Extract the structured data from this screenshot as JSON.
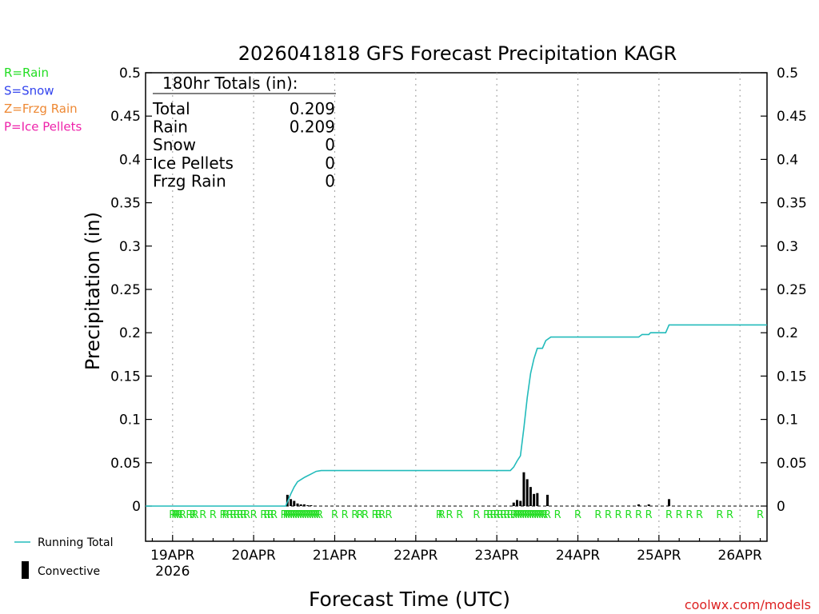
{
  "chart_data": {
    "type": "bar",
    "title": "2026041818 GFS Forecast Precipitation KAGR",
    "xlabel": "Forecast Time (UTC)",
    "ylabel": "Precipitation (in)",
    "ylim": [
      0,
      0.5
    ],
    "xlim_hours": [
      -2,
      182
    ],
    "y_ticks": [
      "0",
      "0.05",
      "0.1",
      "0.15",
      "0.2",
      "0.25",
      "0.3",
      "0.35",
      "0.4",
      "0.45",
      "0.5"
    ],
    "y_tick_values": [
      0,
      0.05,
      0.1,
      0.15,
      0.2,
      0.25,
      0.3,
      0.35,
      0.4,
      0.45,
      0.5
    ],
    "x_ticks": [
      {
        "label": "19APR",
        "hour": 6
      },
      {
        "label": "20APR",
        "hour": 30
      },
      {
        "label": "21APR",
        "hour": 54
      },
      {
        "label": "22APR",
        "hour": 78
      },
      {
        "label": "23APR",
        "hour": 102
      },
      {
        "label": "24APR",
        "hour": 126
      },
      {
        "label": "25APR",
        "hour": 150
      },
      {
        "label": "26APR",
        "hour": 174
      }
    ],
    "year_label": "2026",
    "legend_types": [
      {
        "text": "R=Rain",
        "color": "#22dd22"
      },
      {
        "text": "S=Snow",
        "color": "#3344ee"
      },
      {
        "text": "Z=Frzg Rain",
        "color": "#ee8833"
      },
      {
        "text": "P=Ice Pellets",
        "color": "#ee22aa"
      }
    ],
    "series": [
      {
        "name": "Running Total",
        "type": "line",
        "color": "#22bbbb",
        "points": [
          [
            -2,
            0
          ],
          [
            39.5,
            0
          ],
          [
            40,
            0.005
          ],
          [
            41,
            0.014
          ],
          [
            42,
            0.022
          ],
          [
            43,
            0.028
          ],
          [
            45,
            0.033
          ],
          [
            47,
            0.037
          ],
          [
            48.5,
            0.04
          ],
          [
            50,
            0.041
          ],
          [
            58,
            0.041
          ],
          [
            106,
            0.041
          ],
          [
            107,
            0.045
          ],
          [
            108,
            0.052
          ],
          [
            109,
            0.058
          ],
          [
            110,
            0.09
          ],
          [
            111,
            0.125
          ],
          [
            112,
            0.153
          ],
          [
            113,
            0.17
          ],
          [
            114,
            0.182
          ],
          [
            115.5,
            0.182
          ],
          [
            116.5,
            0.191
          ],
          [
            118,
            0.195
          ],
          [
            144,
            0.195
          ],
          [
            145,
            0.198
          ],
          [
            147,
            0.198
          ],
          [
            147.5,
            0.2
          ],
          [
            152,
            0.2
          ],
          [
            153,
            0.209
          ],
          [
            182,
            0.209
          ]
        ]
      },
      {
        "name": "Convective",
        "type": "bar",
        "color": "#000000",
        "points": [
          [
            40,
            0.013
          ],
          [
            41,
            0.008
          ],
          [
            42,
            0.006
          ],
          [
            43,
            0.003
          ],
          [
            44,
            0.002
          ],
          [
            45,
            0.002
          ],
          [
            46,
            0.001
          ],
          [
            47,
            0.001
          ],
          [
            107,
            0.004
          ],
          [
            108,
            0.007
          ],
          [
            109,
            0.006
          ],
          [
            110,
            0.039
          ],
          [
            111,
            0.031
          ],
          [
            112,
            0.022
          ],
          [
            113,
            0.014
          ],
          [
            114,
            0.015
          ],
          [
            117,
            0.013
          ],
          [
            144,
            0.002
          ],
          [
            147,
            0.002
          ],
          [
            153,
            0.008
          ]
        ]
      }
    ],
    "precip_type_markers": {
      "symbol": "R",
      "hours": [
        6,
        6.7,
        7.4,
        8.1,
        9,
        11,
        12,
        12.7,
        15,
        18,
        21,
        21.7,
        23,
        24,
        25,
        26,
        27,
        28,
        30,
        33,
        34,
        35,
        36,
        39,
        39.7,
        40.4,
        41.1,
        41.8,
        42.5,
        43.2,
        43.9,
        44.6,
        45.3,
        46,
        46.7,
        47.4,
        48.1,
        48.8,
        49.5,
        54,
        57,
        60,
        61.5,
        63,
        66,
        67,
        68,
        70,
        85,
        85.7,
        88,
        91,
        96,
        99,
        100,
        101,
        102,
        103,
        104,
        105,
        106,
        107,
        107.7,
        108.4,
        109.1,
        109.8,
        110.5,
        111.2,
        111.9,
        112.6,
        113.3,
        114,
        114.7,
        115.4,
        116.1,
        117,
        120,
        126,
        132,
        135,
        138,
        141,
        144,
        147,
        153,
        156,
        159,
        162,
        168,
        171,
        180
      ]
    },
    "totals_box": {
      "header": "180hr Totals (in):",
      "rows": [
        {
          "label": "Total",
          "value": "0.209"
        },
        {
          "label": "Rain",
          "value": "0.209"
        },
        {
          "label": "Snow",
          "value": "0"
        },
        {
          "label": "Ice Pellets",
          "value": "0"
        },
        {
          "label": "Frzg Rain",
          "value": "0"
        }
      ]
    },
    "bottom_legend": [
      {
        "text": "Running Total",
        "kind": "line",
        "color": "#22bbbb"
      },
      {
        "text": "Convective",
        "kind": "bar",
        "color": "#000000"
      }
    ],
    "credit": "coolwx.com/models",
    "credit_color": "#dd2222"
  }
}
